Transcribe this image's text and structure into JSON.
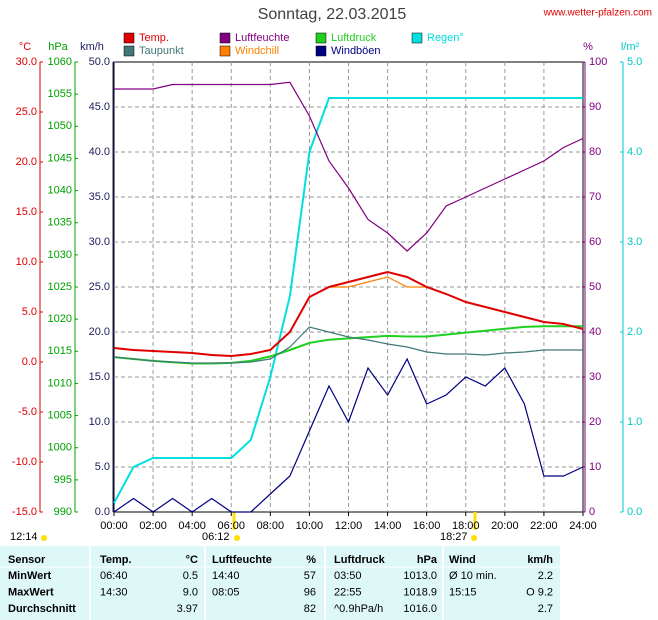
{
  "chart_data": {
    "type": "line",
    "title": "Sonntag, 22.03.2015",
    "source": "www.wetter-pfalzen.com",
    "xlim": [
      0,
      24
    ],
    "xticks": [
      {
        "value": 0,
        "label": "00:00"
      },
      {
        "value": 2,
        "label": "02:00"
      },
      {
        "value": 4,
        "label": "04:00"
      },
      {
        "value": 6,
        "label": "06:00"
      },
      {
        "value": 8,
        "label": "08:00"
      },
      {
        "value": 10,
        "label": "10:00"
      },
      {
        "value": 12,
        "label": "12:00"
      },
      {
        "value": 14,
        "label": "14:00"
      },
      {
        "value": 16,
        "label": "16:00"
      },
      {
        "value": 18,
        "label": "18:00"
      },
      {
        "value": 20,
        "label": "20:00"
      },
      {
        "value": 22,
        "label": "22:00"
      },
      {
        "value": 24,
        "label": "24:00"
      }
    ],
    "axes": [
      {
        "label": "°C",
        "color": "#e00000",
        "lim": [
          -15,
          30
        ],
        "ticks": [
          {
            "value": 30,
            "label": "30.0"
          },
          {
            "value": 25,
            "label": "25.0"
          },
          {
            "value": 20,
            "label": "20.0"
          },
          {
            "value": 15,
            "label": "15.0"
          },
          {
            "value": 10,
            "label": "10.0"
          },
          {
            "value": 5,
            "label": "5.0"
          },
          {
            "value": 0,
            "label": "0.0"
          },
          {
            "value": -5,
            "label": "-5.0"
          },
          {
            "value": -10,
            "label": "-10.0"
          },
          {
            "value": -15,
            "label": "-15.0"
          }
        ]
      },
      {
        "label": "hPa",
        "color": "#00a000",
        "lim": [
          990,
          1060
        ],
        "ticks": [
          1060,
          1055,
          1050,
          1045,
          1040,
          1035,
          1030,
          1025,
          1020,
          1015,
          1010,
          1005,
          1000,
          995,
          990
        ]
      },
      {
        "label": "km/h",
        "color": "#202060",
        "lim": [
          0,
          50
        ],
        "grid": true,
        "ticks": [
          {
            "value": 50,
            "label": "50.0"
          },
          {
            "value": 45,
            "label": "45.0"
          },
          {
            "value": 40,
            "label": "40.0"
          },
          {
            "value": 35,
            "label": "35.0"
          },
          {
            "value": 30,
            "label": "30.0"
          },
          {
            "value": 25,
            "label": "25.0"
          },
          {
            "value": 20,
            "label": "20.0"
          },
          {
            "value": 15,
            "label": "15.0"
          },
          {
            "value": 10,
            "label": "10.0"
          },
          {
            "value": 5,
            "label": "5.0"
          },
          {
            "value": 0,
            "label": "0.0"
          }
        ]
      },
      {
        "label": "%",
        "color": "#800080",
        "lim": [
          0,
          100
        ],
        "ticks": [
          100,
          90,
          80,
          70,
          60,
          50,
          40,
          30,
          20,
          10,
          0
        ]
      },
      {
        "label": "l/m²",
        "color": "#00c8c8",
        "lim": [
          0,
          5
        ],
        "ticks": [
          {
            "value": 5,
            "label": "5.0"
          },
          {
            "value": 4,
            "label": "4.0"
          },
          {
            "value": 3,
            "label": "3.0"
          },
          {
            "value": 2,
            "label": "2.0"
          },
          {
            "value": 1,
            "label": "1.0"
          },
          {
            "value": 0,
            "label": "0.0"
          }
        ]
      }
    ],
    "x": [
      0,
      1,
      2,
      3,
      4,
      5,
      6,
      7,
      8,
      9,
      10,
      11,
      12,
      13,
      14,
      15,
      16,
      17,
      18,
      19,
      20,
      21,
      22,
      23,
      24
    ],
    "series": [
      {
        "name": "Regen°",
        "color": "#00e0e0",
        "axis": 4,
        "values": [
          0.1,
          0.5,
          0.6,
          0.6,
          0.6,
          0.6,
          0.6,
          0.8,
          1.5,
          2.4,
          4.0,
          4.6,
          4.6,
          4.6,
          4.6,
          4.6,
          4.6,
          4.6,
          4.6,
          4.6,
          4.6,
          4.6,
          4.6,
          4.6,
          4.6
        ]
      },
      {
        "name": "Windböen",
        "color": "#000080",
        "axis": 2,
        "values": [
          0,
          1.5,
          0,
          1.5,
          0,
          1.5,
          0,
          0,
          2,
          4,
          9,
          14,
          10,
          16,
          13,
          17,
          12,
          13,
          15,
          14,
          16,
          12,
          4,
          4,
          5
        ]
      },
      {
        "name": "Luftfeuchte",
        "color": "#800080",
        "axis": 3,
        "values": [
          94,
          94,
          94,
          95,
          95,
          95,
          95,
          95,
          95,
          95.5,
          88,
          78,
          72,
          65,
          62,
          58,
          62,
          68,
          70,
          72,
          74,
          76,
          78,
          81,
          83
        ]
      },
      {
        "name": "Luftdruck",
        "color": "#20d020",
        "axis": 1,
        "values": [
          1014.1,
          1013.8,
          1013.5,
          1013.3,
          1013.1,
          1013.1,
          1013.2,
          1013.5,
          1014.2,
          1015.2,
          1016.3,
          1016.8,
          1017,
          1017.2,
          1017.4,
          1017.3,
          1017.3,
          1017.6,
          1017.9,
          1018.2,
          1018.5,
          1018.8,
          1018.9,
          1018.9,
          1018.9
        ]
      },
      {
        "name": "Taupunkt",
        "color": "#407878",
        "axis": 0,
        "values": [
          0.5,
          0.3,
          0.1,
          0,
          -0.1,
          -0.1,
          -0.1,
          0,
          0.3,
          1.5,
          3.5,
          3,
          2.5,
          2.2,
          1.8,
          1.5,
          1,
          0.8,
          0.8,
          0.7,
          0.9,
          1,
          1.2,
          1.2,
          1.2
        ]
      },
      {
        "name": "Windchill",
        "color": "#ff8000",
        "axis": 0,
        "values": [
          1.4,
          1.2,
          1.1,
          1,
          0.9,
          0.7,
          0.6,
          0.8,
          1.2,
          3,
          6.5,
          7.5,
          7.5,
          8,
          8.5,
          7.5,
          7.5,
          6.8,
          6,
          5.5,
          5,
          4.5,
          4,
          3.8,
          3.3
        ]
      },
      {
        "name": "Temp.",
        "color": "#e00000",
        "axis": 0,
        "values": [
          1.4,
          1.2,
          1.1,
          1,
          0.9,
          0.7,
          0.6,
          0.8,
          1.2,
          3,
          6.5,
          7.5,
          8,
          8.5,
          9,
          8.5,
          7.5,
          6.8,
          6,
          5.5,
          5,
          4.5,
          4,
          3.8,
          3.3
        ]
      }
    ],
    "sun": {
      "day_length": "12:14",
      "sunrise": "06:12",
      "sunset": "18:27"
    },
    "table": {
      "header": [
        "Sensor",
        "Temp.",
        "°C",
        "Luftfeuchte",
        "%",
        "Luftdruck",
        "hPa",
        "Wind",
        "km/h"
      ],
      "rows": [
        [
          "MinWert",
          "06:40",
          "0.5",
          "14:40",
          "57",
          "03:50",
          "1013.0",
          "Ø 10 min.",
          "2.2"
        ],
        [
          "MaxWert",
          "14:30",
          "9.0",
          "08:05",
          "96",
          "22:55",
          "1018.9",
          "15:15",
          "O 9.2"
        ],
        [
          "Durchschnitt",
          null,
          "3.97",
          null,
          "82",
          "^0.9hPa/h",
          "1016.0",
          null,
          "2.7"
        ]
      ]
    }
  }
}
